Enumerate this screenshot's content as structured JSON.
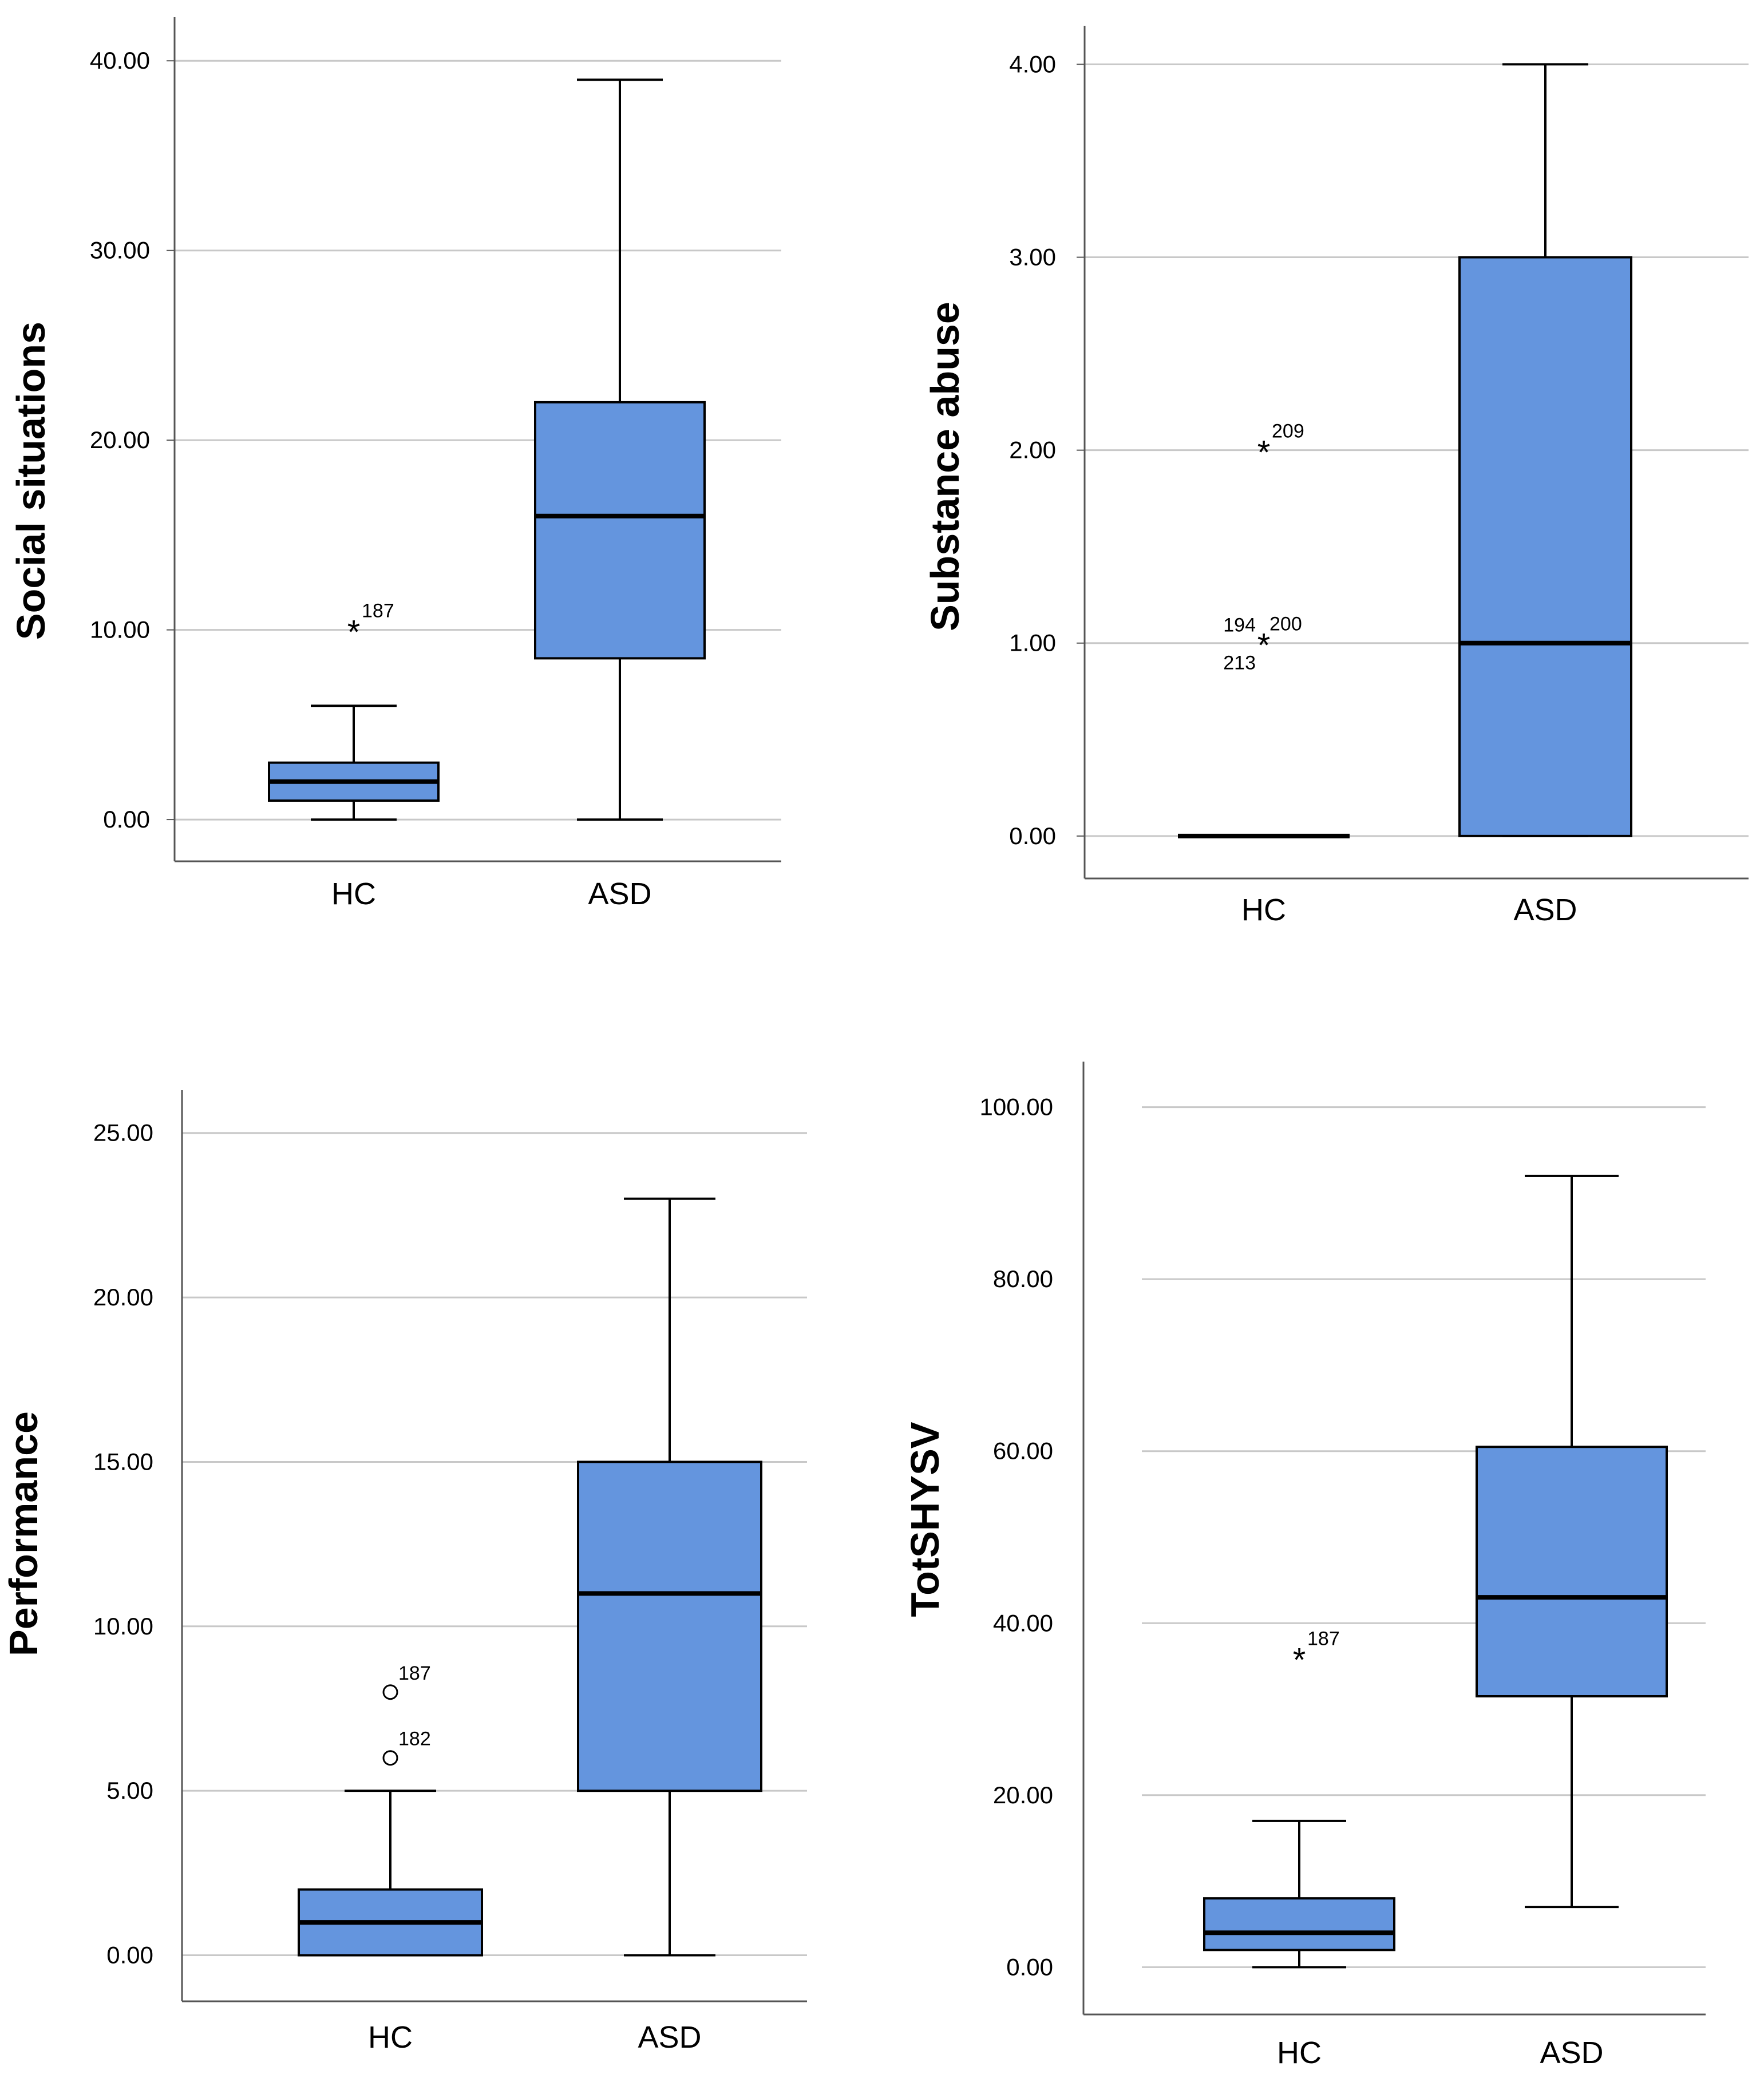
{
  "colors": {
    "box_fill": "#6495de",
    "stroke": "#000000",
    "gridline": "#c8c8c8",
    "axis": "#555555"
  },
  "chart_data": [
    {
      "type": "boxplot",
      "ylabel": "Social situations",
      "categories": [
        "HC",
        "ASD"
      ],
      "ylim": [
        -2.2,
        42.3
      ],
      "yticks": [
        "0.00",
        "10.00",
        "20.00",
        "30.00",
        "40.00"
      ],
      "ytick_values": [
        0,
        10,
        20,
        30,
        40
      ],
      "grid": true,
      "boxes": [
        {
          "category": "HC",
          "whisker_low": 0,
          "q1": 1,
          "median": 2,
          "q3": 3,
          "whisker_high": 6
        },
        {
          "category": "ASD",
          "whisker_low": 0,
          "q1": 8.5,
          "median": 16,
          "q3": 22,
          "whisker_high": 39
        }
      ],
      "outliers": [
        {
          "category": "HC",
          "value": 10,
          "symbol": "asterisk",
          "labels": [
            "187"
          ]
        }
      ]
    },
    {
      "type": "boxplot",
      "ylabel": "Substance abuse",
      "categories": [
        "HC",
        "ASD"
      ],
      "ylim": [
        -0.22,
        4.2
      ],
      "yticks": [
        "0.00",
        "1.00",
        "2.00",
        "3.00",
        "4.00"
      ],
      "ytick_values": [
        0,
        1,
        2,
        3,
        4
      ],
      "grid": true,
      "boxes": [
        {
          "category": "HC",
          "whisker_low": 0,
          "q1": 0,
          "median": 0,
          "q3": 0,
          "whisker_high": 0
        },
        {
          "category": "ASD",
          "whisker_low": 0,
          "q1": 0,
          "median": 1,
          "q3": 3,
          "whisker_high": 4
        }
      ],
      "outliers": [
        {
          "category": "HC",
          "value": 2,
          "symbol": "asterisk",
          "labels": [
            "209"
          ]
        },
        {
          "category": "HC",
          "value": 1,
          "symbol": "asterisk",
          "labels": [
            "194",
            "200",
            "213"
          ]
        }
      ]
    },
    {
      "type": "boxplot",
      "ylabel": "Performance",
      "categories": [
        "HC",
        "ASD"
      ],
      "ylim": [
        -1.4,
        26.3
      ],
      "yticks": [
        "0.00",
        "5.00",
        "10.00",
        "15.00",
        "20.00",
        "25.00"
      ],
      "ytick_values": [
        0,
        5,
        10,
        15,
        20,
        25
      ],
      "grid": true,
      "boxes": [
        {
          "category": "HC",
          "whisker_low": 0,
          "q1": 0,
          "median": 1,
          "q3": 2,
          "whisker_high": 5
        },
        {
          "category": "ASD",
          "whisker_low": 0,
          "q1": 5,
          "median": 11,
          "q3": 15,
          "whisker_high": 23
        }
      ],
      "outliers": [
        {
          "category": "HC",
          "value": 8,
          "symbol": "circle",
          "labels": [
            "187"
          ]
        },
        {
          "category": "HC",
          "value": 6,
          "symbol": "circle",
          "labels": [
            "182"
          ]
        }
      ]
    },
    {
      "type": "boxplot",
      "ylabel": "TotSHYSV",
      "categories": [
        "HC",
        "ASD"
      ],
      "ylim": [
        -5.5,
        105.3
      ],
      "yticks": [
        "0.00",
        "20.00",
        "40.00",
        "60.00",
        "80.00",
        "100.00"
      ],
      "ytick_values": [
        0,
        20,
        40,
        60,
        80,
        100
      ],
      "grid": true,
      "boxes": [
        {
          "category": "HC",
          "whisker_low": 0,
          "q1": 2,
          "median": 4,
          "q3": 8,
          "whisker_high": 17
        },
        {
          "category": "ASD",
          "whisker_low": 7,
          "q1": 31.5,
          "median": 43,
          "q3": 60.5,
          "whisker_high": 92
        }
      ],
      "outliers": [
        {
          "category": "HC",
          "value": 36,
          "symbol": "asterisk",
          "labels": [
            "187"
          ]
        }
      ]
    }
  ]
}
